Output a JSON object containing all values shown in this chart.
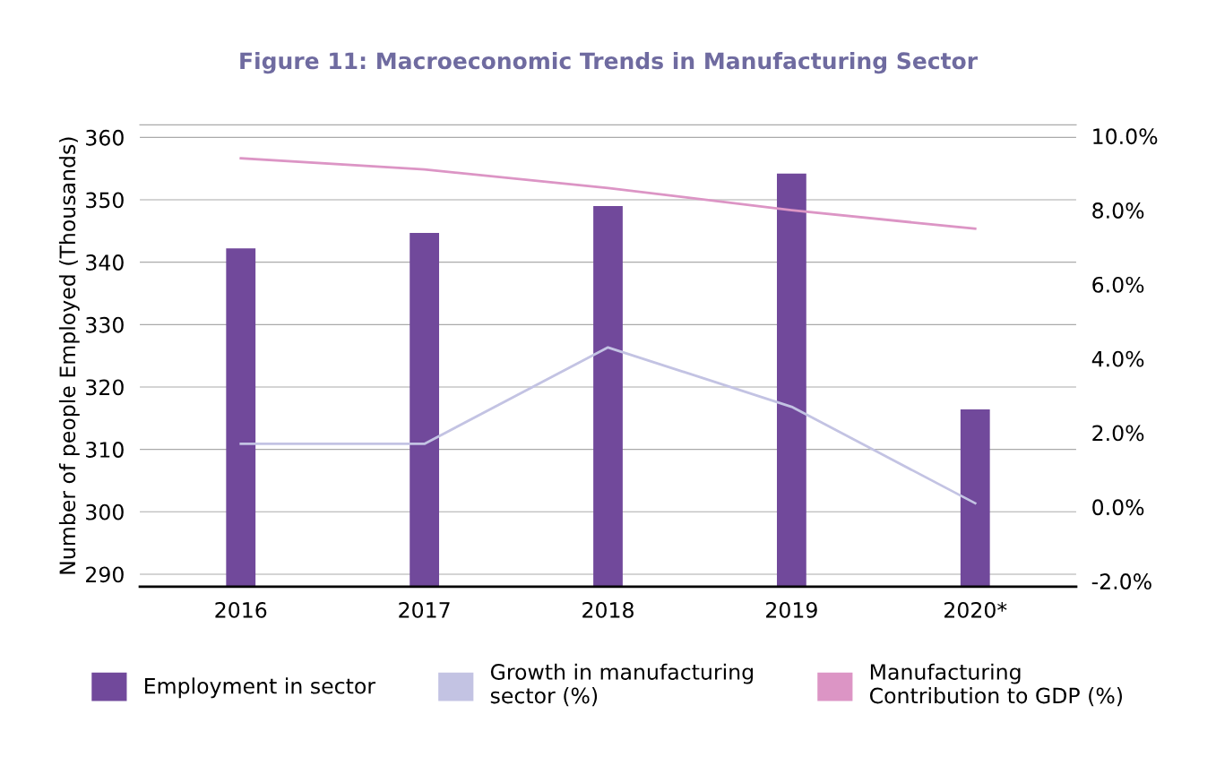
{
  "chart_data": {
    "type": "bar",
    "title": "Figure 11: Macroeconomic Trends in Manufacturing Sector",
    "ylabel": "Number of people Employed (Thousands)",
    "categories": [
      "2016",
      "2017",
      "2018",
      "2019",
      "2020*"
    ],
    "series": [
      {
        "name": "Employment in sector",
        "color": "#71499b",
        "values": [
          342.2,
          344.7,
          349,
          354.2,
          316.4
        ]
      },
      {
        "name": "Growth in manufacturing sector (%)",
        "type": "line",
        "axis": "y2",
        "color": "#c3c3e3",
        "values": [
          1.7,
          1.7,
          4.3,
          2.7,
          0.1
        ]
      },
      {
        "name": "Manufacturing Contribution to GDP (%)",
        "type": "line",
        "axis": "y2",
        "color": "#dc95c5",
        "values": [
          9.4,
          9.1,
          8.6,
          8.0,
          7.5
        ]
      }
    ],
    "ylim": [
      288,
      362
    ],
    "yticks": [
      290,
      300,
      310,
      320,
      330,
      340,
      350,
      360
    ],
    "y2lim": [
      -2.15,
      10.3
    ],
    "y2ticks": [
      {
        "value": -2,
        "label": "-2.0%"
      },
      {
        "value": 0,
        "label": "0.0%"
      },
      {
        "value": 2,
        "label": "2.0%"
      },
      {
        "value": 4,
        "label": "4.0%"
      },
      {
        "value": 6,
        "label": "6.0%"
      },
      {
        "value": 8,
        "label": "8.0%"
      },
      {
        "value": 10,
        "label": "10.0%"
      }
    ],
    "grid": "y",
    "legend": "bottom"
  }
}
